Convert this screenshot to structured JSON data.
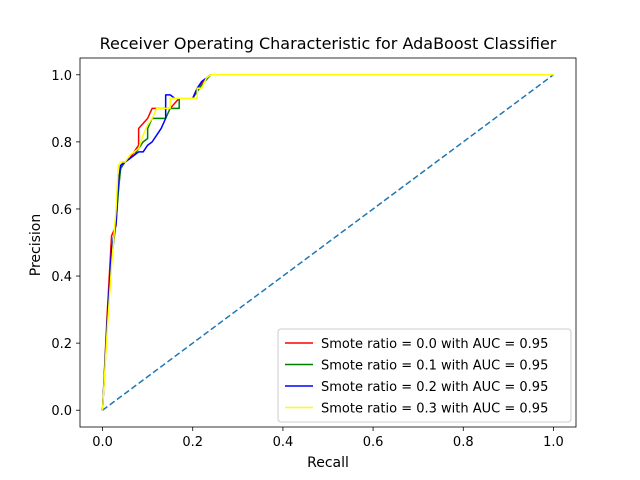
{
  "chart_data": {
    "type": "line",
    "title": "Receiver Operating Characteristic for AdaBoost Classifier",
    "xlabel": "Recall",
    "ylabel": "Precision",
    "xlim": [
      -0.05,
      1.05
    ],
    "ylim": [
      -0.05,
      1.05
    ],
    "xticks": [
      "0.0",
      "0.2",
      "0.4",
      "0.6",
      "0.8",
      "1.0"
    ],
    "yticks": [
      "0.0",
      "0.2",
      "0.4",
      "0.6",
      "0.8",
      "1.0"
    ],
    "grid": false,
    "legend_position": "lower-right",
    "diagonal": {
      "color": "#1f77b4",
      "style": "dashed",
      "x": [
        0,
        1
      ],
      "y": [
        0,
        1
      ]
    },
    "series": [
      {
        "name": "Smote ratio = 0.0 with AUC = 0.95",
        "color": "#ff0000",
        "x": [
          0,
          0.01,
          0.02,
          0.03,
          0.035,
          0.04,
          0.045,
          0.05,
          0.06,
          0.07,
          0.08,
          0.08,
          0.1,
          0.11,
          0.11,
          0.13,
          0.15,
          0.17,
          0.18,
          0.2,
          0.21,
          0.23,
          0.24,
          0.5,
          0.75,
          1.0
        ],
        "y": [
          0,
          0.28,
          0.52,
          0.55,
          0.68,
          0.72,
          0.74,
          0.74,
          0.75,
          0.77,
          0.79,
          0.84,
          0.87,
          0.9,
          0.9,
          0.9,
          0.9,
          0.93,
          0.93,
          0.93,
          0.96,
          0.99,
          1.0,
          1.0,
          1.0,
          1.0
        ]
      },
      {
        "name": "Smote ratio = 0.1 with AUC = 0.95",
        "color": "#008000",
        "x": [
          0,
          0.01,
          0.02,
          0.03,
          0.035,
          0.04,
          0.05,
          0.06,
          0.07,
          0.08,
          0.09,
          0.1,
          0.1,
          0.11,
          0.13,
          0.14,
          0.15,
          0.16,
          0.17,
          0.17,
          0.19,
          0.2,
          0.22,
          0.24,
          0.5,
          0.75,
          1.0
        ],
        "y": [
          0,
          0.26,
          0.45,
          0.56,
          0.65,
          0.72,
          0.74,
          0.75,
          0.76,
          0.78,
          0.8,
          0.81,
          0.84,
          0.87,
          0.87,
          0.87,
          0.9,
          0.9,
          0.9,
          0.93,
          0.93,
          0.93,
          0.97,
          1.0,
          1.0,
          1.0,
          1.0
        ]
      },
      {
        "name": "Smote ratio = 0.2 with AUC = 0.95",
        "color": "#0000ff",
        "x": [
          0,
          0.01,
          0.02,
          0.03,
          0.035,
          0.04,
          0.05,
          0.06,
          0.07,
          0.08,
          0.09,
          0.1,
          0.11,
          0.12,
          0.13,
          0.14,
          0.14,
          0.15,
          0.16,
          0.18,
          0.2,
          0.21,
          0.22,
          0.23,
          0.24,
          0.5,
          0.75,
          1.0
        ],
        "y": [
          0,
          0.25,
          0.48,
          0.56,
          0.68,
          0.73,
          0.74,
          0.75,
          0.76,
          0.77,
          0.77,
          0.79,
          0.8,
          0.82,
          0.84,
          0.87,
          0.94,
          0.94,
          0.93,
          0.93,
          0.93,
          0.96,
          0.98,
          0.99,
          1.0,
          1.0,
          1.0,
          1.0
        ]
      },
      {
        "name": "Smote ratio = 0.3 with AUC = 0.95",
        "color": "#ffff00",
        "x": [
          0,
          0.01,
          0.02,
          0.03,
          0.035,
          0.04,
          0.05,
          0.06,
          0.07,
          0.08,
          0.09,
          0.1,
          0.11,
          0.12,
          0.13,
          0.14,
          0.15,
          0.15,
          0.17,
          0.19,
          0.21,
          0.21,
          0.22,
          0.23,
          0.24,
          0.5,
          0.75,
          1.0
        ],
        "y": [
          0,
          0.23,
          0.43,
          0.6,
          0.73,
          0.74,
          0.74,
          0.76,
          0.77,
          0.78,
          0.82,
          0.85,
          0.87,
          0.9,
          0.9,
          0.9,
          0.9,
          0.93,
          0.93,
          0.93,
          0.93,
          0.96,
          0.96,
          0.99,
          1.0,
          1.0,
          1.0,
          1.0
        ]
      }
    ]
  }
}
